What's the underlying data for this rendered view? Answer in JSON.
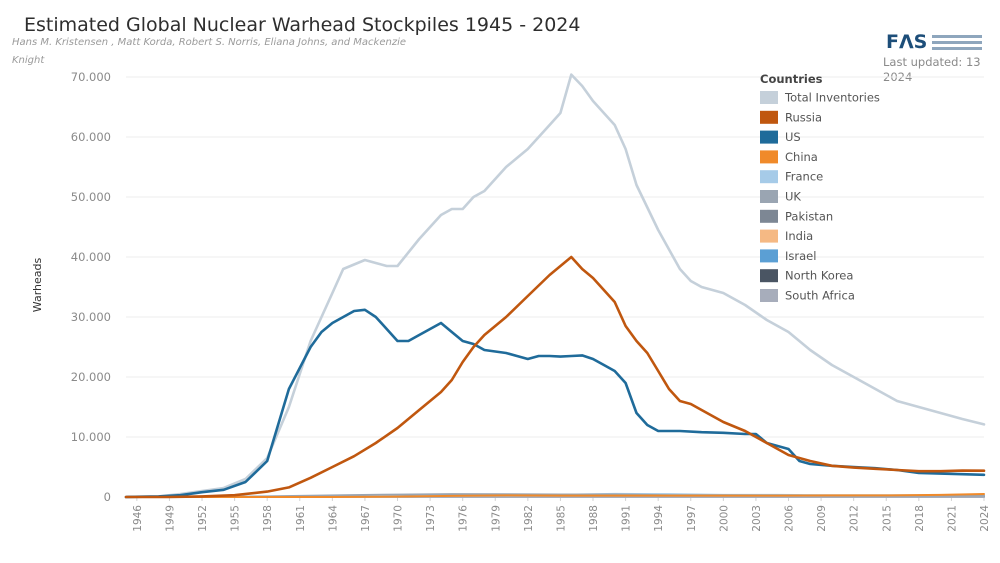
{
  "colors": {
    "Total Inventories": "#c5d0da",
    "Russia": "#c0570f",
    "US": "#1f6b9a",
    "China": "#f08a2a",
    "France": "#a6cbe8",
    "UK": "#9aa5b2",
    "Pakistan": "#7d8794",
    "India": "#f5b984",
    "Israel": "#5b9fd4",
    "North Korea": "#4a5563",
    "South Africa": "#a7adbb"
  },
  "header": {
    "title": "Estimated Global Nuclear Warhead Stockpiles 1945 - 2024",
    "subtitle_line1": "Hans M. Kristensen , Matt Korda, Robert S. Norris, Eliana Johns, and Mackenzie",
    "subtitle_line2": "Knight",
    "logo": "FΛS",
    "updated_line1": "Last updated: 13",
    "updated_line2": "2024"
  },
  "legend": {
    "title": "Countries",
    "items": [
      "Total Inventories",
      "Russia",
      "US",
      "China",
      "France",
      "UK",
      "Pakistan",
      "India",
      "Israel",
      "North Korea",
      "South Africa"
    ]
  },
  "chart_data": {
    "type": "line",
    "title": "Estimated Global Nuclear Warhead Stockpiles 1945 - 2024",
    "xlabel": "",
    "ylabel": "Warheads",
    "xlim": [
      1945,
      2024
    ],
    "ylim": [
      0,
      70000
    ],
    "yticks": [
      0,
      10000,
      20000,
      30000,
      40000,
      50000,
      60000,
      70000
    ],
    "ytick_labels": [
      "0",
      "10.000",
      "20.000",
      "30.000",
      "40.000",
      "50.000",
      "60.000",
      "70.000"
    ],
    "xticks": [
      1946,
      1949,
      1952,
      1955,
      1958,
      1961,
      1964,
      1967,
      1970,
      1973,
      1976,
      1979,
      1982,
      1985,
      1988,
      1991,
      1994,
      1997,
      2000,
      2003,
      2006,
      2009,
      2012,
      2015,
      2018,
      2021,
      2024
    ],
    "grid": true,
    "legend_position": "top-right",
    "series": [
      {
        "name": "Total Inventories",
        "x": [
          1945,
          1948,
          1950,
          1952,
          1954,
          1956,
          1958,
          1960,
          1962,
          1964,
          1965,
          1967,
          1968,
          1969,
          1970,
          1972,
          1973,
          1974,
          1975,
          1976,
          1977,
          1978,
          1980,
          1982,
          1984,
          1985,
          1986,
          1987,
          1988,
          1990,
          1991,
          1992,
          1994,
          1996,
          1997,
          1998,
          2000,
          2002,
          2004,
          2006,
          2008,
          2010,
          2012,
          2014,
          2016,
          2018,
          2019,
          2020,
          2022,
          2024
        ],
        "y": [
          0,
          100,
          500,
          1000,
          1500,
          3000,
          6500,
          15000,
          26000,
          34000,
          38000,
          39500,
          39000,
          38500,
          38500,
          43000,
          45000,
          47000,
          48000,
          48000,
          50000,
          51000,
          55000,
          58000,
          62000,
          64000,
          70400,
          68500,
          66000,
          62000,
          58000,
          52000,
          44500,
          38000,
          36000,
          35000,
          34000,
          32000,
          29500,
          27500,
          24500,
          22000,
          20000,
          18000,
          16000,
          15000,
          14500,
          14000,
          13000,
          12100
        ]
      },
      {
        "name": "US",
        "x": [
          1945,
          1948,
          1950,
          1952,
          1954,
          1956,
          1958,
          1960,
          1962,
          1963,
          1964,
          1966,
          1967,
          1968,
          1969,
          1970,
          1971,
          1972,
          1973,
          1974,
          1975,
          1976,
          1977,
          1978,
          1980,
          1981,
          1982,
          1983,
          1984,
          1985,
          1986,
          1987,
          1988,
          1989,
          1990,
          1991,
          1992,
          1993,
          1994,
          1996,
          1998,
          2000,
          2002,
          2003,
          2004,
          2006,
          2007,
          2008,
          2010,
          2012,
          2014,
          2016,
          2018,
          2020,
          2022,
          2024
        ],
        "y": [
          0,
          100,
          300,
          800,
          1200,
          2500,
          6000,
          18000,
          25000,
          27500,
          29000,
          31000,
          31200,
          30000,
          28000,
          26000,
          26000,
          27000,
          28000,
          29000,
          27500,
          26000,
          25500,
          24500,
          24000,
          23500,
          23000,
          23500,
          23500,
          23400,
          23500,
          23600,
          23000,
          22000,
          21000,
          19000,
          14000,
          12000,
          11000,
          11000,
          10800,
          10700,
          10500,
          10500,
          9000,
          8000,
          6000,
          5500,
          5200,
          5000,
          4800,
          4500,
          4000,
          3900,
          3800,
          3700
        ]
      },
      {
        "name": "Russia",
        "x": [
          1945,
          1949,
          1952,
          1955,
          1958,
          1960,
          1962,
          1964,
          1966,
          1968,
          1970,
          1972,
          1974,
          1975,
          1976,
          1977,
          1978,
          1980,
          1982,
          1984,
          1986,
          1987,
          1988,
          1990,
          1991,
          1992,
          1993,
          1994,
          1995,
          1996,
          1997,
          1998,
          2000,
          2002,
          2004,
          2006,
          2008,
          2010,
          2012,
          2014,
          2016,
          2018,
          2020,
          2022,
          2024
        ],
        "y": [
          0,
          0,
          100,
          300,
          900,
          1600,
          3200,
          5000,
          6800,
          9000,
          11500,
          14500,
          17500,
          19500,
          22500,
          25000,
          27000,
          30000,
          33500,
          37000,
          40000,
          38000,
          36500,
          32500,
          28500,
          26000,
          24000,
          21000,
          18000,
          16000,
          15500,
          14500,
          12500,
          11000,
          9000,
          7000,
          6000,
          5200,
          4900,
          4700,
          4500,
          4300,
          4300,
          4400,
          4380
        ]
      },
      {
        "name": "UK",
        "x": [
          1945,
          1953,
          1958,
          1965,
          1970,
          1975,
          1980,
          1985,
          1990,
          1995,
          2000,
          2005,
          2010,
          2015,
          2020,
          2024
        ],
        "y": [
          0,
          0,
          100,
          300,
          400,
          480,
          450,
          420,
          420,
          300,
          280,
          270,
          225,
          215,
          215,
          225
        ]
      },
      {
        "name": "France",
        "x": [
          1945,
          1963,
          1970,
          1975,
          1980,
          1985,
          1990,
          1995,
          2000,
          2005,
          2010,
          2015,
          2020,
          2024
        ],
        "y": [
          0,
          0,
          40,
          180,
          250,
          360,
          510,
          480,
          350,
          350,
          300,
          300,
          290,
          290
        ]
      },
      {
        "name": "China",
        "x": [
          1945,
          1964,
          1970,
          1975,
          1980,
          1985,
          1990,
          1995,
          2000,
          2005,
          2010,
          2015,
          2020,
          2024
        ],
        "y": [
          0,
          0,
          70,
          180,
          270,
          240,
          230,
          230,
          230,
          240,
          260,
          270,
          350,
          500
        ]
      },
      {
        "name": "Pakistan",
        "x": [
          1945,
          1998,
          2005,
          2010,
          2015,
          2020,
          2024
        ],
        "y": [
          0,
          0,
          40,
          70,
          130,
          160,
          170
        ]
      },
      {
        "name": "India",
        "x": [
          1945,
          1998,
          2005,
          2010,
          2015,
          2020,
          2024
        ],
        "y": [
          0,
          0,
          40,
          70,
          110,
          150,
          172
        ]
      },
      {
        "name": "Israel",
        "x": [
          1945,
          1967,
          1975,
          1985,
          2000,
          2024
        ],
        "y": [
          0,
          0,
          20,
          50,
          80,
          90
        ]
      },
      {
        "name": "North Korea",
        "x": [
          1945,
          2006,
          2012,
          2018,
          2024
        ],
        "y": [
          0,
          0,
          10,
          25,
          50
        ]
      },
      {
        "name": "South Africa",
        "x": [
          1945,
          1979,
          1985,
          1990,
          1992,
          2024
        ],
        "y": [
          0,
          0,
          4,
          6,
          0,
          0
        ]
      }
    ]
  }
}
